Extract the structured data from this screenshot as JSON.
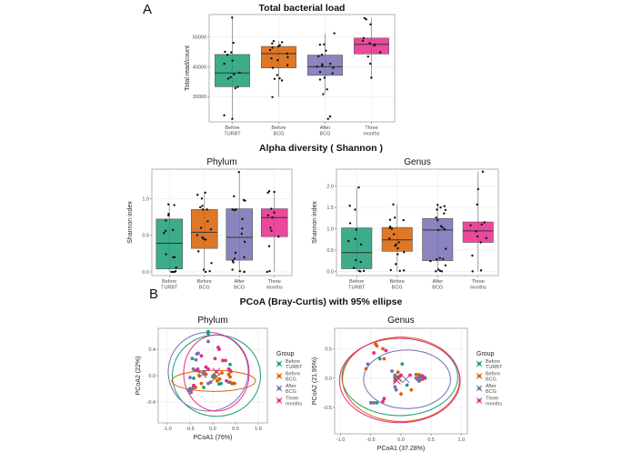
{
  "panel_labels": {
    "a": "A",
    "b": "B"
  },
  "section_titles": {
    "alpha": "Alpha diversity ( Shannon )",
    "pcoa": "PCoA  (Bray-Curtis) with 95% ellipse"
  },
  "colors": {
    "Before TURBT": "#1b9e77",
    "Before BCG": "#d95f02",
    "After BCG": "#7570b3",
    "Three months": "#e7298a"
  },
  "chart_data": [
    {
      "id": "total",
      "type": "box",
      "title": "Total bacterial load",
      "xlabel": "",
      "ylabel": "Total read/count",
      "categories": [
        "Before\nTURBT",
        "Before\nBCG",
        "After\nBCG",
        "Three\nmonths"
      ],
      "groups": [
        "Before TURBT",
        "Before BCG",
        "After BCG",
        "Three months"
      ],
      "ylim": [
        21500,
        57500
      ],
      "yticks": [
        30000,
        40000,
        50000
      ],
      "boxes": [
        {
          "q1": 33300,
          "median": 37900,
          "q3": 44100,
          "lo": 22500,
          "hi": 56500
        },
        {
          "q1": 39600,
          "median": 44400,
          "q3": 46800,
          "lo": 29800,
          "hi": 48600
        },
        {
          "q1": 37100,
          "median": 40000,
          "q3": 43900,
          "lo": 31000,
          "hi": 51200
        },
        {
          "q1": 44300,
          "median": 47500,
          "q3": 49600,
          "lo": 36300,
          "hi": 56300
        }
      ],
      "points": [
        [
          56500,
          48000,
          45000,
          44000,
          44800,
          42000,
          41000,
          38000,
          37500,
          36500,
          36000,
          33200,
          32800,
          23700,
          22500
        ],
        [
          48600,
          48200,
          47800,
          47200,
          46800,
          46400,
          45600,
          44400,
          43200,
          42800,
          42200,
          40500,
          39600,
          37200,
          36100,
          35400,
          35900,
          29800
        ],
        [
          51200,
          47500,
          47400,
          45400,
          44000,
          43500,
          41000,
          40800,
          40300,
          40000,
          39600,
          38200,
          37800,
          36300,
          35700,
          32400,
          30800,
          23300,
          22500
        ],
        [
          56300,
          55900,
          54200,
          49600,
          48700,
          47900,
          47500,
          47100,
          44800,
          43400,
          41000,
          36300
        ]
      ]
    },
    {
      "id": "alpha_phylum",
      "type": "box",
      "title": "Phylum",
      "ylabel": "Shannon index",
      "categories": [
        "Before\nTURBT",
        "Before\nBCG",
        "After\nBCG",
        "Three\nmonths"
      ],
      "groups": [
        "Before TURBT",
        "Before BCG",
        "After BCG",
        "Three months"
      ],
      "ylim": [
        -0.05,
        1.4
      ],
      "yticks": [
        0.0,
        0.5,
        1.0
      ],
      "boxes": [
        {
          "q1": 0.04,
          "median": 0.39,
          "q3": 0.72,
          "lo": 0.0,
          "hi": 0.92
        },
        {
          "q1": 0.32,
          "median": 0.54,
          "q3": 0.85,
          "lo": 0.0,
          "hi": 1.08
        },
        {
          "q1": 0.16,
          "median": 0.47,
          "q3": 0.86,
          "lo": 0.0,
          "hi": 1.36
        },
        {
          "q1": 0.48,
          "median": 0.74,
          "q3": 0.86,
          "lo": 0.0,
          "hi": 1.1
        }
      ],
      "points": [
        [
          0.92,
          0.91,
          0.79,
          0.77,
          0.7,
          0.56,
          0.57,
          0.53,
          0.24,
          0.2,
          0.2,
          0.06,
          0.01,
          0.0,
          0.0,
          0.0
        ],
        [
          1.08,
          1.05,
          1.0,
          0.9,
          0.88,
          0.85,
          0.85,
          0.69,
          0.6,
          0.58,
          0.5,
          0.47,
          0.44,
          0.45,
          0.28,
          0.12,
          0.03,
          0.01,
          0.0
        ],
        [
          1.36,
          1.03,
          0.98,
          0.97,
          0.85,
          0.85,
          0.84,
          0.72,
          0.59,
          0.52,
          0.41,
          0.26,
          0.2,
          0.18,
          0.15,
          0.13,
          0.03,
          0.01,
          0.0,
          0.0
        ],
        [
          1.1,
          1.09,
          1.08,
          0.86,
          0.81,
          0.77,
          0.74,
          0.6,
          0.56,
          0.48,
          0.35,
          0.01,
          0.0
        ]
      ]
    },
    {
      "id": "alpha_genus",
      "type": "box",
      "title": "Genus",
      "ylabel": "Shannon index",
      "categories": [
        "Before\nTURBT",
        "Before\nBCG",
        "After\nBCG",
        "Three\nmonths"
      ],
      "groups": [
        "Before TURBT",
        "Before BCG",
        "After BCG",
        "Three months"
      ],
      "ylim": [
        -0.1,
        2.4
      ],
      "yticks": [
        0.0,
        0.5,
        1.0,
        1.5,
        2.0
      ],
      "boxes": [
        {
          "q1": 0.06,
          "median": 0.44,
          "q3": 1.02,
          "lo": 0.0,
          "hi": 1.97
        },
        {
          "q1": 0.47,
          "median": 0.74,
          "q3": 1.03,
          "lo": 0.0,
          "hi": 1.57
        },
        {
          "q1": 0.25,
          "median": 0.97,
          "q3": 1.24,
          "lo": 0.0,
          "hi": 1.56
        },
        {
          "q1": 0.68,
          "median": 0.95,
          "q3": 1.16,
          "lo": 0.0,
          "hi": 2.34
        }
      ],
      "points": [
        [
          1.97,
          1.54,
          1.45,
          1.13,
          0.98,
          0.76,
          0.71,
          0.63,
          0.26,
          0.22,
          0.08,
          0.01,
          0.0,
          0.01
        ],
        [
          1.57,
          1.26,
          1.21,
          1.2,
          1.05,
          1.02,
          1.0,
          0.87,
          0.77,
          0.68,
          0.63,
          0.6,
          0.54,
          0.45,
          0.4,
          0.17,
          0.03,
          0.02,
          0.01
        ],
        [
          1.56,
          1.53,
          1.5,
          1.45,
          1.44,
          1.36,
          1.26,
          1.2,
          1.06,
          1.03,
          0.99,
          0.97,
          0.53,
          0.31,
          0.29,
          0.28,
          0.24,
          0.14,
          0.04,
          0.01,
          0.0,
          0.0
        ],
        [
          2.34,
          1.93,
          1.57,
          1.15,
          1.1,
          1.08,
          0.94,
          0.82,
          0.78,
          0.68,
          0.37,
          0.02,
          0.0
        ]
      ]
    },
    {
      "id": "pcoa_phylum",
      "type": "scatter",
      "title": "Phylum",
      "xlabel": "PCoA1 (76%)",
      "ylabel": "PCoA2 (22%)",
      "xlim": [
        -1.2,
        1.2
      ],
      "ylim": [
        -0.72,
        0.72
      ],
      "xticks": [
        -1.0,
        -0.5,
        0.0,
        0.5,
        1.0
      ],
      "yticks": [
        -0.4,
        0.0,
        0.4
      ],
      "legend_title": "Group",
      "legend": [
        "Before\nTURBT",
        "Before\nBCG",
        "After\nBCG",
        "Three\nmonths"
      ],
      "legend_position": "right",
      "series": [
        {
          "name": "Before TURBT",
          "centroid": [
            0.08,
            -0.02
          ],
          "ellipse": {
            "cx": 0.08,
            "cy": 0.0,
            "rx": 0.97,
            "ry": 0.62
          },
          "points": [
            [
              -0.1,
              0.67
            ],
            [
              -0.1,
              0.64
            ],
            [
              -0.45,
              0.26
            ],
            [
              0.38,
              0.17
            ],
            [
              -0.42,
              -0.04
            ],
            [
              0.18,
              -0.12
            ],
            [
              0.14,
              -0.13
            ],
            [
              -0.2,
              -0.18
            ],
            [
              0.45,
              -0.12
            ],
            [
              0.42,
              -0.12
            ],
            [
              -0.52,
              -0.22
            ],
            [
              -0.5,
              -0.2
            ],
            [
              0.0,
              -0.02
            ],
            [
              0.04,
              0.0
            ]
          ]
        },
        {
          "name": "Before BCG",
          "centroid": [
            0.05,
            -0.04
          ],
          "ellipse": {
            "cx": 0.02,
            "cy": -0.08,
            "rx": 0.92,
            "ry": 0.16
          },
          "points": [
            [
              -0.4,
              0.08
            ],
            [
              -0.3,
              0.06
            ],
            [
              -0.2,
              0.04
            ],
            [
              -0.15,
              0.02
            ],
            [
              0.35,
              0.02
            ],
            [
              0.38,
              -0.02
            ],
            [
              0.4,
              0.06
            ],
            [
              0.38,
              -0.1
            ],
            [
              0.45,
              -0.12
            ],
            [
              0.48,
              -0.12
            ],
            [
              -0.42,
              -0.16
            ],
            [
              -0.45,
              -0.2
            ],
            [
              -0.38,
              -0.18
            ],
            [
              -0.3,
              0.0
            ],
            [
              -0.25,
              -0.12
            ],
            [
              0.15,
              -0.05
            ],
            [
              0.2,
              0.04
            ],
            [
              -0.48,
              -0.24
            ],
            [
              0.1,
              -0.08
            ]
          ]
        },
        {
          "name": "After BCG",
          "centroid": [
            -0.22,
            0.02
          ],
          "ellipse": {
            "cx": -0.1,
            "cy": 0.06,
            "rx": 0.88,
            "ry": 0.6
          },
          "points": [
            [
              -0.1,
              0.52
            ],
            [
              -0.32,
              0.34
            ],
            [
              -0.35,
              0.33
            ],
            [
              -0.37,
              0.24
            ],
            [
              -0.43,
              0.1
            ],
            [
              -0.5,
              -0.03
            ],
            [
              -0.33,
              0.1
            ],
            [
              -0.5,
              -0.23
            ],
            [
              -0.45,
              -0.2
            ],
            [
              -0.48,
              -0.26
            ],
            [
              -0.1,
              -0.12
            ],
            [
              0.35,
              -0.1
            ],
            [
              -0.05,
              -0.1
            ],
            [
              -0.2,
              0.06
            ]
          ]
        },
        {
          "name": "Three months",
          "centroid": [
            0.08,
            0.06
          ],
          "ellipse": {
            "cx": 0.08,
            "cy": 0.04,
            "rx": 0.72,
            "ry": 0.58
          },
          "points": [
            [
              0.12,
              0.43
            ],
            [
              0.14,
              0.4
            ],
            [
              -0.25,
              0.3
            ],
            [
              0.05,
              0.26
            ],
            [
              0.22,
              0.23
            ],
            [
              0.28,
              0.23
            ],
            [
              -0.1,
              0.1
            ],
            [
              -0.15,
              0.13
            ],
            [
              0.35,
              0.1
            ],
            [
              0.38,
              0.08
            ],
            [
              -0.35,
              0.08
            ],
            [
              0.3,
              -0.08
            ],
            [
              -0.42,
              -0.15
            ],
            [
              0.08,
              0.06
            ]
          ]
        }
      ]
    },
    {
      "id": "pcoa_genus",
      "type": "scatter",
      "title": "Genus",
      "xlabel": "PCoA1 (37.28%)",
      "ylabel": "PCoA2 (21.95%)",
      "xlim": [
        -1.1,
        1.1
      ],
      "ylim": [
        -0.95,
        0.85
      ],
      "xticks": [
        -1.0,
        -0.5,
        0.0,
        0.5,
        1.0
      ],
      "yticks": [
        -0.5,
        0.0,
        0.5
      ],
      "legend_title": "Group",
      "legend": [
        "Before\nTURBT",
        "Before\nBCG",
        "After\nBCG",
        "Three\nmonths"
      ],
      "legend_position": "right",
      "series": [
        {
          "name": "Before TURBT",
          "centroid": [
            -0.05,
            0.0
          ],
          "ellipse": {
            "cx": -0.02,
            "cy": 0.02,
            "rx": 0.96,
            "ry": 0.66
          },
          "points": [
            [
              0.02,
              0.24
            ],
            [
              -0.35,
              0.33
            ],
            [
              -0.5,
              -0.42
            ],
            [
              -0.45,
              -0.42
            ],
            [
              -0.4,
              -0.42
            ],
            [
              0.3,
              0.02
            ],
            [
              0.35,
              -0.02
            ],
            [
              0.4,
              0.0
            ],
            [
              -0.05,
              0.02
            ],
            [
              0.1,
              -0.12
            ],
            [
              -0.1,
              0.0
            ]
          ]
        },
        {
          "name": "Before BCG",
          "centroid": [
            -0.04,
            0.0
          ],
          "ellipse": {
            "cx": 0.0,
            "cy": -0.02,
            "rx": 0.97,
            "ry": 0.72
          },
          "points": [
            [
              -0.42,
              0.58
            ],
            [
              -0.4,
              0.55
            ],
            [
              -0.3,
              0.5
            ],
            [
              -0.25,
              0.47
            ],
            [
              -0.58,
              0.16
            ],
            [
              -0.28,
              0.33
            ],
            [
              -0.05,
              0.1
            ],
            [
              0.0,
              -0.27
            ],
            [
              0.17,
              -0.2
            ],
            [
              0.25,
              0.06
            ],
            [
              0.3,
              0.06
            ],
            [
              0.35,
              -0.02
            ],
            [
              0.3,
              -0.05
            ],
            [
              -0.1,
              -0.05
            ]
          ]
        },
        {
          "name": "After BCG",
          "centroid": [
            0.08,
            -0.02
          ],
          "ellipse": {
            "cx": 0.1,
            "cy": -0.02,
            "rx": 0.72,
            "ry": 0.5
          },
          "points": [
            [
              -0.55,
              0.24
            ],
            [
              -0.15,
              0.12
            ],
            [
              -0.1,
              0.05
            ],
            [
              0.25,
              0.0
            ],
            [
              0.28,
              -0.03
            ],
            [
              0.32,
              -0.02
            ],
            [
              0.35,
              0.0
            ],
            [
              0.38,
              0.02
            ],
            [
              -0.1,
              -0.15
            ],
            [
              -0.08,
              -0.2
            ],
            [
              -0.5,
              -0.42
            ],
            [
              -0.45,
              -0.42
            ],
            [
              0.3,
              -0.05
            ]
          ]
        },
        {
          "name": "Three months",
          "centroid": [
            -0.07,
            -0.04
          ],
          "ellipse": {
            "cx": -0.02,
            "cy": -0.04,
            "rx": 1.0,
            "ry": 0.72
          },
          "points": [
            [
              -0.45,
              0.43
            ],
            [
              -0.25,
              0.47
            ],
            [
              0.15,
              0.05
            ],
            [
              0.35,
              0.04
            ],
            [
              0.38,
              0.0
            ],
            [
              -0.28,
              -0.35
            ],
            [
              -0.3,
              -0.4
            ],
            [
              0.0,
              0.05
            ],
            [
              -0.02,
              0.03
            ]
          ]
        }
      ]
    }
  ]
}
